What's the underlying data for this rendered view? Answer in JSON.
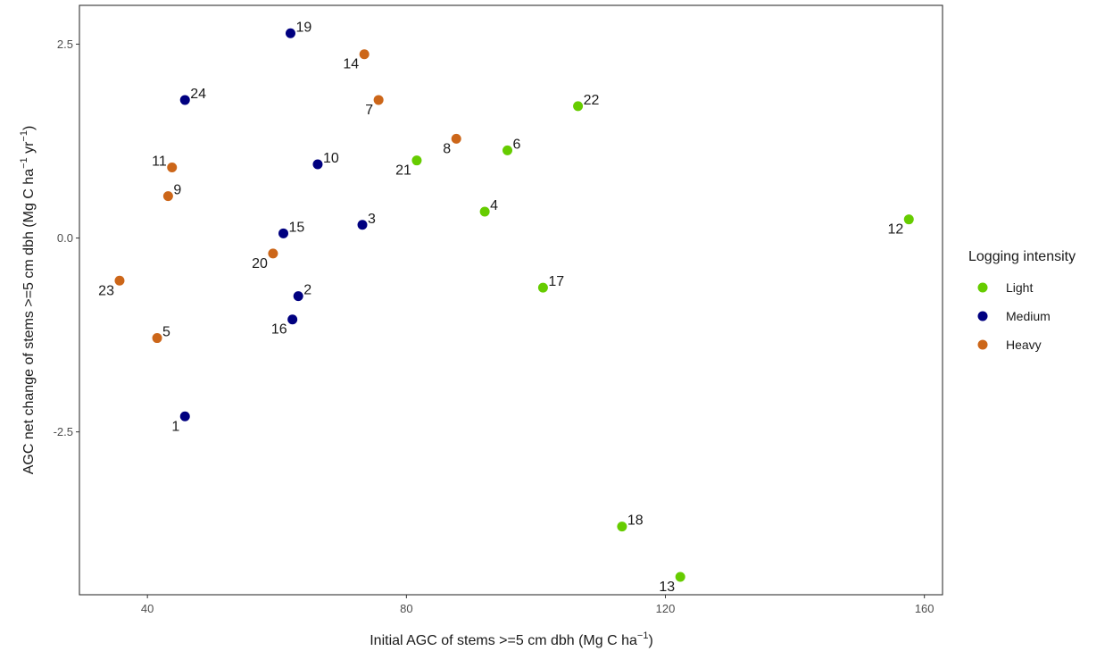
{
  "chart_data": {
    "type": "scatter",
    "xlabel": "Initial AGC of stems >=5 cm dbh (Mg C ha",
    "xlabel_sup": "−1",
    "xlabel_end": ")",
    "ylabel": "AGC net change of stems >=5 cm dbh (Mg C ha",
    "ylabel_sup1": "−1",
    "ylabel_mid": " yr",
    "ylabel_sup2": "−1",
    "ylabel_end": ")",
    "xlim": [
      29.5,
      162.8
    ],
    "ylim": [
      -4.6,
      3.0
    ],
    "x_ticks": [
      40,
      80,
      120,
      160
    ],
    "x_tick_labels": [
      "40",
      "80",
      "120",
      "160"
    ],
    "y_ticks": [
      2.5,
      0.0,
      -2.5
    ],
    "y_tick_labels": [
      "2.5",
      "0.0",
      "-2.5"
    ],
    "grid": false,
    "legend": {
      "title": "Logging intensity",
      "placement": "right",
      "entries": [
        {
          "name": "Light",
          "color": "#66cc00"
        },
        {
          "name": "Medium",
          "color": "#000080"
        },
        {
          "name": "Heavy",
          "color": "#cc6619"
        }
      ]
    },
    "points": [
      {
        "label": "1",
        "x": 45.8,
        "y": -2.3,
        "group": "Medium",
        "label_pos": "bl"
      },
      {
        "label": "2",
        "x": 63.3,
        "y": -0.75,
        "group": "Medium",
        "label_pos": "tr"
      },
      {
        "label": "3",
        "x": 73.2,
        "y": 0.17,
        "group": "Medium",
        "label_pos": "tr"
      },
      {
        "label": "4",
        "x": 92.1,
        "y": 0.34,
        "group": "Light",
        "label_pos": "tr"
      },
      {
        "label": "5",
        "x": 41.5,
        "y": -1.29,
        "group": "Heavy",
        "label_pos": "tr"
      },
      {
        "label": "6",
        "x": 95.6,
        "y": 1.13,
        "group": "Light",
        "label_pos": "tr"
      },
      {
        "label": "7",
        "x": 75.7,
        "y": 1.78,
        "group": "Heavy",
        "label_pos": "bl"
      },
      {
        "label": "8",
        "x": 87.7,
        "y": 1.28,
        "group": "Heavy",
        "label_pos": "bl"
      },
      {
        "label": "9",
        "x": 43.2,
        "y": 0.54,
        "group": "Heavy",
        "label_pos": "tr"
      },
      {
        "label": "10",
        "x": 66.3,
        "y": 0.95,
        "group": "Medium",
        "label_pos": "tr"
      },
      {
        "label": "11",
        "x": 43.8,
        "y": 0.91,
        "group": "Heavy",
        "label_pos": "tl"
      },
      {
        "label": "12",
        "x": 157.6,
        "y": 0.24,
        "group": "Light",
        "label_pos": "bl"
      },
      {
        "label": "13",
        "x": 122.3,
        "y": -4.37,
        "group": "Light",
        "label_pos": "bl"
      },
      {
        "label": "14",
        "x": 73.5,
        "y": 2.37,
        "group": "Heavy",
        "label_pos": "bl"
      },
      {
        "label": "15",
        "x": 61.0,
        "y": 0.06,
        "group": "Medium",
        "label_pos": "tr"
      },
      {
        "label": "16",
        "x": 62.4,
        "y": -1.05,
        "group": "Medium",
        "label_pos": "bl"
      },
      {
        "label": "17",
        "x": 101.1,
        "y": -0.64,
        "group": "Light",
        "label_pos": "tr"
      },
      {
        "label": "18",
        "x": 113.3,
        "y": -3.72,
        "group": "Light",
        "label_pos": "tr"
      },
      {
        "label": "19",
        "x": 62.1,
        "y": 2.64,
        "group": "Medium",
        "label_pos": "tr"
      },
      {
        "label": "20",
        "x": 59.4,
        "y": -0.2,
        "group": "Heavy",
        "label_pos": "bl"
      },
      {
        "label": "21",
        "x": 81.6,
        "y": 1.0,
        "group": "Light",
        "label_pos": "bl"
      },
      {
        "label": "22",
        "x": 106.5,
        "y": 1.7,
        "group": "Light",
        "label_pos": "tr"
      },
      {
        "label": "23",
        "x": 35.7,
        "y": -0.55,
        "group": "Heavy",
        "label_pos": "bl"
      },
      {
        "label": "24",
        "x": 45.8,
        "y": 1.78,
        "group": "Medium",
        "label_pos": "tr"
      }
    ]
  }
}
